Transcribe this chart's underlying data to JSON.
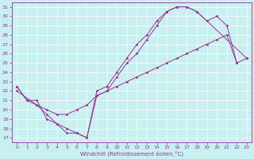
{
  "xlabel": "Windchill (Refroidissement éolien,°C)",
  "bg_color": "#c8f0f0",
  "line_color": "#993399",
  "grid_color": "#ffffff",
  "xlim": [
    -0.5,
    23.5
  ],
  "ylim": [
    16.5,
    31.5
  ],
  "yticks": [
    17,
    18,
    19,
    20,
    21,
    22,
    23,
    24,
    25,
    26,
    27,
    28,
    29,
    30,
    31
  ],
  "xticks": [
    0,
    1,
    2,
    3,
    4,
    5,
    6,
    7,
    8,
    9,
    10,
    11,
    12,
    13,
    14,
    15,
    16,
    17,
    18,
    19,
    20,
    21,
    22,
    23
  ],
  "line1_x": [
    0,
    1,
    2,
    3,
    4,
    5,
    6,
    7,
    8,
    9,
    10,
    11,
    12,
    13,
    14,
    15,
    16,
    17,
    18,
    19,
    20,
    21,
    22
  ],
  "line1_y": [
    22.5,
    21.0,
    21.0,
    19.0,
    18.5,
    17.5,
    17.5,
    17.0,
    22.0,
    22.5,
    24.0,
    25.5,
    27.0,
    28.0,
    29.5,
    30.5,
    31.0,
    31.0,
    30.5,
    29.5,
    30.0,
    29.0,
    25.0
  ],
  "line2_x": [
    0,
    1,
    2,
    3,
    4,
    5,
    6,
    7,
    8,
    9,
    10,
    11,
    12,
    13,
    14,
    15,
    16,
    17,
    18,
    23
  ],
  "line2_y": [
    22.5,
    21.0,
    20.5,
    19.5,
    18.5,
    18.0,
    17.5,
    17.0,
    21.5,
    22.0,
    23.5,
    25.0,
    26.0,
    27.5,
    29.0,
    30.5,
    31.0,
    31.0,
    30.5,
    25.5
  ],
  "line3_x": [
    0,
    2,
    3,
    4,
    5,
    6,
    7,
    8,
    9,
    10,
    11,
    12,
    13,
    14,
    15,
    16,
    17,
    18,
    19,
    20,
    21,
    22,
    23
  ],
  "line3_y": [
    22.0,
    20.5,
    20.0,
    19.5,
    19.5,
    20.0,
    20.5,
    21.5,
    22.0,
    22.5,
    23.0,
    23.5,
    24.0,
    24.5,
    25.0,
    25.5,
    26.0,
    26.5,
    27.0,
    27.5,
    28.0,
    25.0,
    25.5
  ]
}
